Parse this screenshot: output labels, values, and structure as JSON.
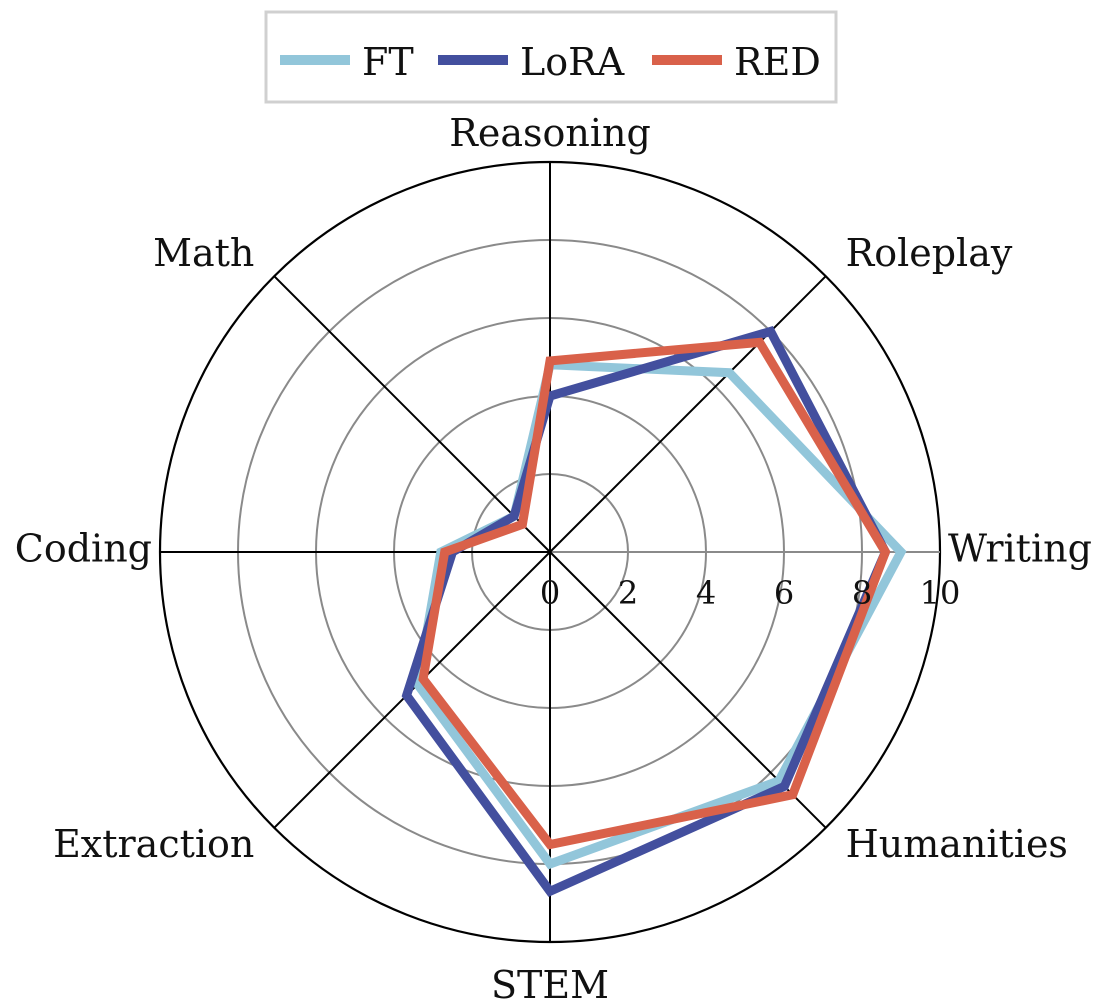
{
  "chart_data": {
    "type": "radar",
    "categories": [
      "Writing",
      "Roleplay",
      "Reasoning",
      "Math",
      "Coding",
      "Extraction",
      "STEM",
      "Humanities"
    ],
    "rlim": [
      0,
      10
    ],
    "rticks": [
      "0",
      "2",
      "4",
      "6",
      "8",
      "10"
    ],
    "grid": true,
    "legend_position": "top",
    "series": [
      {
        "name": "FT",
        "color": "#92c6da",
        "values": [
          9.0,
          6.5,
          4.8,
          1.3,
          2.8,
          4.8,
          8.0,
          8.3
        ]
      },
      {
        "name": "LoRA",
        "color": "#434f9e",
        "values": [
          8.6,
          8.0,
          4.0,
          1.3,
          2.5,
          5.2,
          8.7,
          8.5
        ]
      },
      {
        "name": "RED",
        "color": "#d9614a",
        "values": [
          8.6,
          7.6,
          4.9,
          1.0,
          2.7,
          4.6,
          7.5,
          8.8
        ]
      }
    ]
  }
}
